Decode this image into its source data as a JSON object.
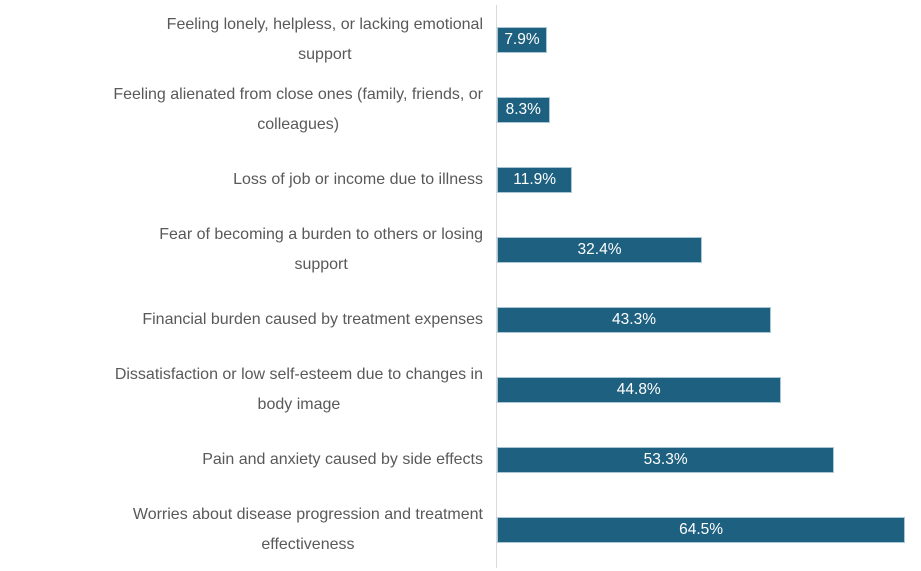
{
  "chart_data": {
    "type": "bar",
    "orientation": "horizontal",
    "title": "",
    "xlabel": "",
    "ylabel": "",
    "xlim": [
      0,
      67
    ],
    "grid": false,
    "legend": false,
    "categories": [
      "Feeling lonely, helpless, or lacking emotional\nsupport",
      "Feeling alienated from close ones (family, friends, or\ncolleagues)",
      "Loss of job or income due to illness",
      "Fear of becoming a burden to others or losing\nsupport",
      "Financial burden caused by treatment expenses",
      "Dissatisfaction or low self-esteem due to changes in\nbody image",
      "Pain and anxiety caused by side effects",
      "Worries about disease progression and treatment\neffectiveness"
    ],
    "values": [
      7.9,
      8.3,
      11.9,
      32.4,
      43.3,
      44.8,
      53.3,
      64.5
    ],
    "value_labels": [
      "7.9%",
      "8.3%",
      "11.9%",
      "32.4%",
      "43.3%",
      "44.8%",
      "53.3%",
      "64.5%"
    ],
    "colors": {
      "bar_fill": "#1E6080",
      "bar_border": "#A9C7D6",
      "category_text": "#595959",
      "value_text": "#FFFFFF",
      "axis_line": "#D9D9D9",
      "background": "#FFFFFF"
    }
  }
}
